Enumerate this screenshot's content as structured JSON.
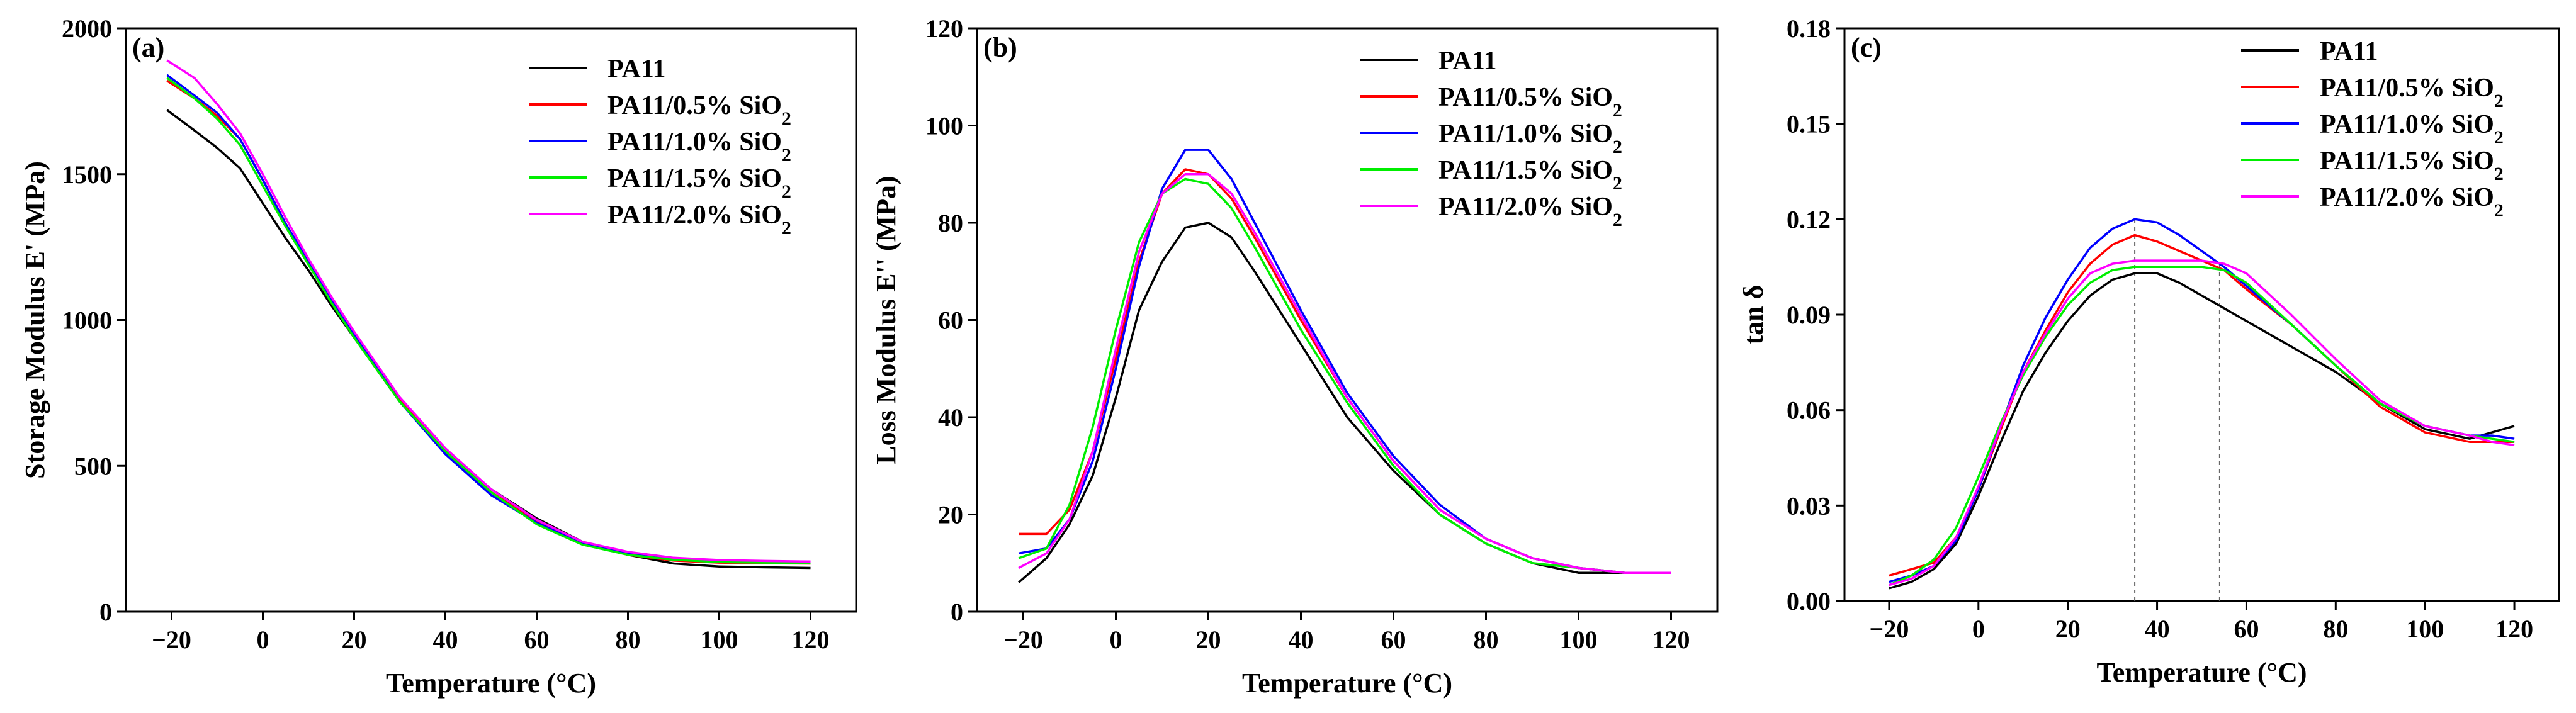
{
  "chart_data": [
    {
      "type": "line",
      "panel_label": "(a)",
      "xlabel": "Temperature (°C)",
      "ylabel": "Storage Modulus E' (MPa)",
      "xlim": [
        -30,
        130
      ],
      "ylim": [
        0,
        2000
      ],
      "xticks": [
        -20,
        0,
        20,
        40,
        60,
        80,
        100,
        120
      ],
      "yticks": [
        0,
        500,
        1000,
        1500,
        2000
      ],
      "legend_position": "top-right",
      "series": [
        {
          "name": "PA11",
          "color": "#000000",
          "x": [
            -21,
            -15,
            -10,
            -5,
            0,
            5,
            10,
            15,
            20,
            30,
            40,
            50,
            60,
            70,
            80,
            90,
            100,
            110,
            120
          ],
          "y": [
            1720,
            1650,
            1590,
            1520,
            1400,
            1280,
            1170,
            1050,
            940,
            720,
            550,
            420,
            320,
            240,
            195,
            165,
            155,
            152,
            150
          ]
        },
        {
          "name": "PA11/0.5% SiO2",
          "color": "#ff0000",
          "x": [
            -21,
            -15,
            -10,
            -5,
            0,
            5,
            10,
            15,
            20,
            30,
            40,
            50,
            60,
            70,
            80,
            90,
            100,
            110,
            120
          ],
          "y": [
            1820,
            1760,
            1700,
            1620,
            1480,
            1330,
            1200,
            1070,
            950,
            730,
            550,
            410,
            310,
            235,
            195,
            175,
            168,
            166,
            165
          ]
        },
        {
          "name": "PA11/1.0% SiO2",
          "color": "#0000ff",
          "x": [
            -21,
            -15,
            -10,
            -5,
            0,
            5,
            10,
            15,
            20,
            30,
            40,
            50,
            60,
            70,
            80,
            90,
            100,
            110,
            120
          ],
          "y": [
            1840,
            1770,
            1710,
            1620,
            1480,
            1330,
            1200,
            1070,
            950,
            720,
            540,
            400,
            305,
            235,
            200,
            180,
            172,
            170,
            168
          ]
        },
        {
          "name": "PA11/1.5% SiO2",
          "color": "#00ee00",
          "x": [
            -21,
            -15,
            -10,
            -5,
            0,
            5,
            10,
            15,
            20,
            30,
            40,
            50,
            60,
            70,
            80,
            90,
            100,
            110,
            120
          ],
          "y": [
            1830,
            1760,
            1690,
            1600,
            1460,
            1320,
            1190,
            1060,
            940,
            720,
            550,
            410,
            300,
            230,
            195,
            178,
            170,
            168,
            167
          ]
        },
        {
          "name": "PA11/2.0% SiO2",
          "color": "#ff00ff",
          "x": [
            -21,
            -15,
            -10,
            -5,
            0,
            5,
            10,
            15,
            20,
            30,
            40,
            50,
            60,
            70,
            80,
            90,
            100,
            110,
            120
          ],
          "y": [
            1890,
            1830,
            1740,
            1640,
            1500,
            1350,
            1210,
            1080,
            960,
            735,
            560,
            420,
            315,
            240,
            205,
            185,
            177,
            174,
            172
          ]
        }
      ]
    },
    {
      "type": "line",
      "panel_label": "(b)",
      "xlabel": "Temperature (°C)",
      "ylabel": "Loss Modulus E'' (MPa)",
      "xlim": [
        -30,
        130
      ],
      "ylim": [
        0,
        120
      ],
      "xticks": [
        -20,
        0,
        20,
        40,
        60,
        80,
        100,
        120
      ],
      "yticks": [
        0,
        20,
        40,
        60,
        80,
        100,
        120
      ],
      "legend_position": "top-right",
      "series": [
        {
          "name": "PA11",
          "color": "#000000",
          "x": [
            -21,
            -15,
            -10,
            -5,
            0,
            5,
            10,
            15,
            20,
            25,
            30,
            40,
            50,
            60,
            70,
            80,
            90,
            100,
            110,
            120
          ],
          "y": [
            6,
            11,
            18,
            28,
            44,
            62,
            72,
            79,
            80,
            77,
            70,
            55,
            40,
            29,
            20,
            14,
            10,
            8,
            8,
            8
          ]
        },
        {
          "name": "PA11/0.5% SiO2",
          "color": "#ff0000",
          "x": [
            -21,
            -15,
            -10,
            -5,
            0,
            5,
            10,
            15,
            20,
            25,
            30,
            40,
            50,
            60,
            70,
            80,
            90,
            100,
            110,
            120
          ],
          "y": [
            16,
            16,
            21,
            33,
            52,
            72,
            86,
            91,
            90,
            85,
            77,
            60,
            44,
            31,
            21,
            15,
            11,
            9,
            8,
            8
          ]
        },
        {
          "name": "PA11/1.0% SiO2",
          "color": "#0000ff",
          "x": [
            -21,
            -15,
            -10,
            -5,
            0,
            5,
            10,
            15,
            20,
            25,
            30,
            40,
            50,
            60,
            70,
            80,
            90,
            100,
            110,
            120
          ],
          "y": [
            12,
            13,
            19,
            31,
            50,
            71,
            87,
            95,
            95,
            89,
            80,
            62,
            45,
            32,
            22,
            15,
            11,
            9,
            8,
            8
          ]
        },
        {
          "name": "PA11/1.5% SiO2",
          "color": "#00ee00",
          "x": [
            -21,
            -15,
            -10,
            -5,
            0,
            5,
            10,
            15,
            20,
            25,
            30,
            40,
            50,
            60,
            70,
            80,
            90,
            100,
            110,
            120
          ],
          "y": [
            11,
            13,
            22,
            38,
            58,
            76,
            86,
            89,
            88,
            83,
            75,
            58,
            43,
            30,
            20,
            14,
            10,
            9,
            8,
            8
          ]
        },
        {
          "name": "PA11/2.0% SiO2",
          "color": "#ff00ff",
          "x": [
            -21,
            -15,
            -10,
            -5,
            0,
            5,
            10,
            15,
            20,
            25,
            30,
            40,
            50,
            60,
            70,
            80,
            90,
            100,
            110,
            120
          ],
          "y": [
            9,
            12,
            19,
            33,
            54,
            74,
            86,
            90,
            90,
            86,
            78,
            61,
            44,
            31,
            21,
            15,
            11,
            9,
            8,
            8
          ]
        }
      ]
    },
    {
      "type": "line",
      "panel_label": "(c)",
      "xlabel": "Temperature (°C)",
      "ylabel": "tan δ",
      "xlim": [
        -30,
        130
      ],
      "ylim": [
        0,
        0.18
      ],
      "xticks": [
        -20,
        0,
        20,
        40,
        60,
        80,
        100,
        120
      ],
      "yticks": [
        0.0,
        0.03,
        0.06,
        0.09,
        0.12,
        0.15,
        0.18
      ],
      "ytick_labels": [
        "0.00",
        "0.03",
        "0.06",
        "0.09",
        "0.12",
        "0.15",
        "0.18"
      ],
      "reference_lines_x": [
        35,
        54
      ],
      "legend_position": "top-right",
      "series": [
        {
          "name": "PA11",
          "color": "#000000",
          "x": [
            -20,
            -15,
            -10,
            -5,
            0,
            5,
            10,
            15,
            20,
            25,
            30,
            35,
            40,
            45,
            50,
            55,
            60,
            70,
            80,
            90,
            100,
            110,
            115,
            120
          ],
          "y": [
            0.004,
            0.006,
            0.01,
            0.018,
            0.033,
            0.05,
            0.066,
            0.078,
            0.088,
            0.096,
            0.101,
            0.103,
            0.103,
            0.1,
            0.096,
            0.092,
            0.088,
            0.08,
            0.072,
            0.062,
            0.054,
            0.051,
            0.053,
            0.055
          ]
        },
        {
          "name": "PA11/0.5% SiO2",
          "color": "#ff0000",
          "x": [
            -20,
            -15,
            -10,
            -5,
            0,
            5,
            10,
            15,
            20,
            25,
            30,
            35,
            40,
            45,
            50,
            55,
            60,
            70,
            80,
            90,
            100,
            110,
            115,
            120
          ],
          "y": [
            0.008,
            0.01,
            0.012,
            0.02,
            0.035,
            0.054,
            0.072,
            0.085,
            0.097,
            0.106,
            0.112,
            0.115,
            0.113,
            0.11,
            0.107,
            0.104,
            0.098,
            0.087,
            0.074,
            0.061,
            0.053,
            0.05,
            0.05,
            0.05
          ]
        },
        {
          "name": "PA11/1.0% SiO2",
          "color": "#0000ff",
          "x": [
            -20,
            -15,
            -10,
            -5,
            0,
            5,
            10,
            15,
            20,
            25,
            30,
            35,
            40,
            45,
            50,
            55,
            60,
            70,
            80,
            90,
            100,
            110,
            115,
            120
          ],
          "y": [
            0.006,
            0.008,
            0.011,
            0.019,
            0.035,
            0.055,
            0.074,
            0.089,
            0.101,
            0.111,
            0.117,
            0.12,
            0.119,
            0.115,
            0.11,
            0.105,
            0.099,
            0.087,
            0.074,
            0.062,
            0.055,
            0.052,
            0.052,
            0.051
          ]
        },
        {
          "name": "PA11/1.5% SiO2",
          "color": "#00ee00",
          "x": [
            -20,
            -15,
            -10,
            -5,
            0,
            5,
            10,
            15,
            20,
            25,
            30,
            35,
            40,
            45,
            50,
            55,
            60,
            70,
            80,
            90,
            100,
            110,
            115,
            120
          ],
          "y": [
            0.005,
            0.008,
            0.013,
            0.023,
            0.039,
            0.056,
            0.071,
            0.083,
            0.093,
            0.1,
            0.104,
            0.105,
            0.105,
            0.105,
            0.105,
            0.104,
            0.1,
            0.087,
            0.074,
            0.062,
            0.055,
            0.052,
            0.051,
            0.05
          ]
        },
        {
          "name": "PA11/2.0% SiO2",
          "color": "#ff00ff",
          "x": [
            -20,
            -15,
            -10,
            -5,
            0,
            5,
            10,
            15,
            20,
            25,
            30,
            35,
            40,
            45,
            50,
            55,
            60,
            70,
            80,
            90,
            100,
            110,
            115,
            120
          ],
          "y": [
            0.005,
            0.007,
            0.011,
            0.02,
            0.036,
            0.055,
            0.072,
            0.084,
            0.095,
            0.103,
            0.106,
            0.107,
            0.107,
            0.107,
            0.107,
            0.106,
            0.103,
            0.09,
            0.076,
            0.063,
            0.055,
            0.052,
            0.05,
            0.049
          ]
        }
      ]
    }
  ]
}
